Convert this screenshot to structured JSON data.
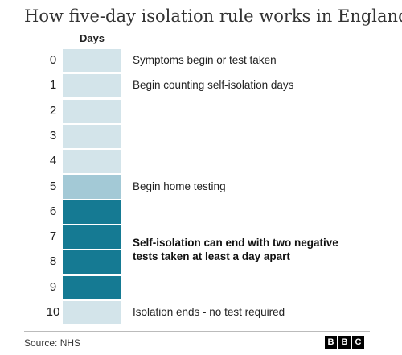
{
  "title": "How five-day isolation rule works in England",
  "days_header": "Days",
  "colors": {
    "pre": "#d3e4ea",
    "testing": "#a3c9d6",
    "isolation": "#157a93"
  },
  "days": [
    {
      "num": "0",
      "label": "Symptoms begin or test taken",
      "phase": "pre"
    },
    {
      "num": "1",
      "label": "Begin counting self-isolation days",
      "phase": "pre"
    },
    {
      "num": "2",
      "label": "",
      "phase": "pre"
    },
    {
      "num": "3",
      "label": "",
      "phase": "pre"
    },
    {
      "num": "4",
      "label": "",
      "phase": "pre"
    },
    {
      "num": "5",
      "label": "Begin home testing",
      "phase": "testing"
    },
    {
      "num": "6",
      "label": "",
      "phase": "isolation"
    },
    {
      "num": "7",
      "label": "",
      "phase": "isolation"
    },
    {
      "num": "8",
      "label": "",
      "phase": "isolation"
    },
    {
      "num": "9",
      "label": "",
      "phase": "isolation"
    },
    {
      "num": "10",
      "label": "Isolation ends - no test required",
      "phase": "pre"
    }
  ],
  "bracket_label": "Self-isolation can end with two negative tests taken at least a day apart",
  "source": "Source: NHS",
  "logo": {
    "letters": [
      "B",
      "B",
      "C"
    ]
  }
}
